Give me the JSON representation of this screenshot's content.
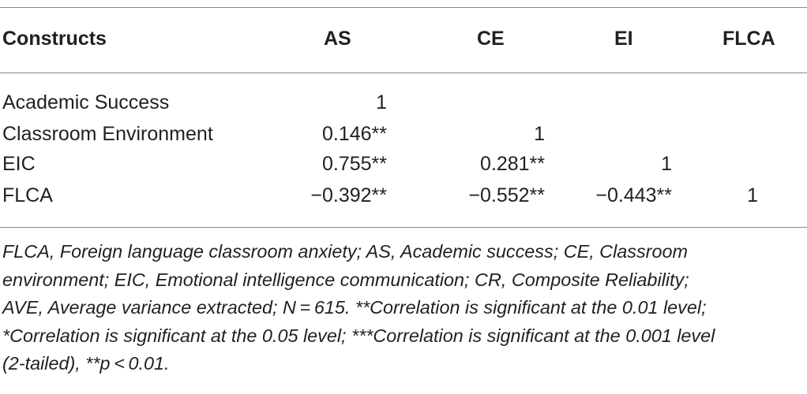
{
  "table": {
    "headers": [
      "Constructs",
      "AS",
      "CE",
      "EI",
      "FLCA"
    ],
    "rows": [
      {
        "label": "Academic Success",
        "as": "1",
        "ce": "",
        "ei": "",
        "flca": ""
      },
      {
        "label": "Classroom Environment",
        "as": "0.146**",
        "ce": "1",
        "ei": "",
        "flca": ""
      },
      {
        "label": "EIC",
        "as": "0.755**",
        "ce": "0.281**",
        "ei": "1",
        "flca": ""
      },
      {
        "label": "FLCA",
        "as": "−0.392**",
        "ce": "−0.552**",
        "ei": "−0.443**",
        "flca": "1"
      }
    ]
  },
  "footnote": {
    "lines": [
      "FLCA, Foreign language classroom anxiety; AS, Academic success; CE, Classroom",
      "environment; EIC, Emotional intelligence communication; CR, Composite Reliability;",
      "AVE, Average variance extracted; N = 615. **Correlation is significant at the 0.01 level;",
      "*Correlation is significant at the 0.05 level; ***Correlation is significant at the 0.001 level",
      "(2-tailed), **p < 0.01."
    ]
  }
}
